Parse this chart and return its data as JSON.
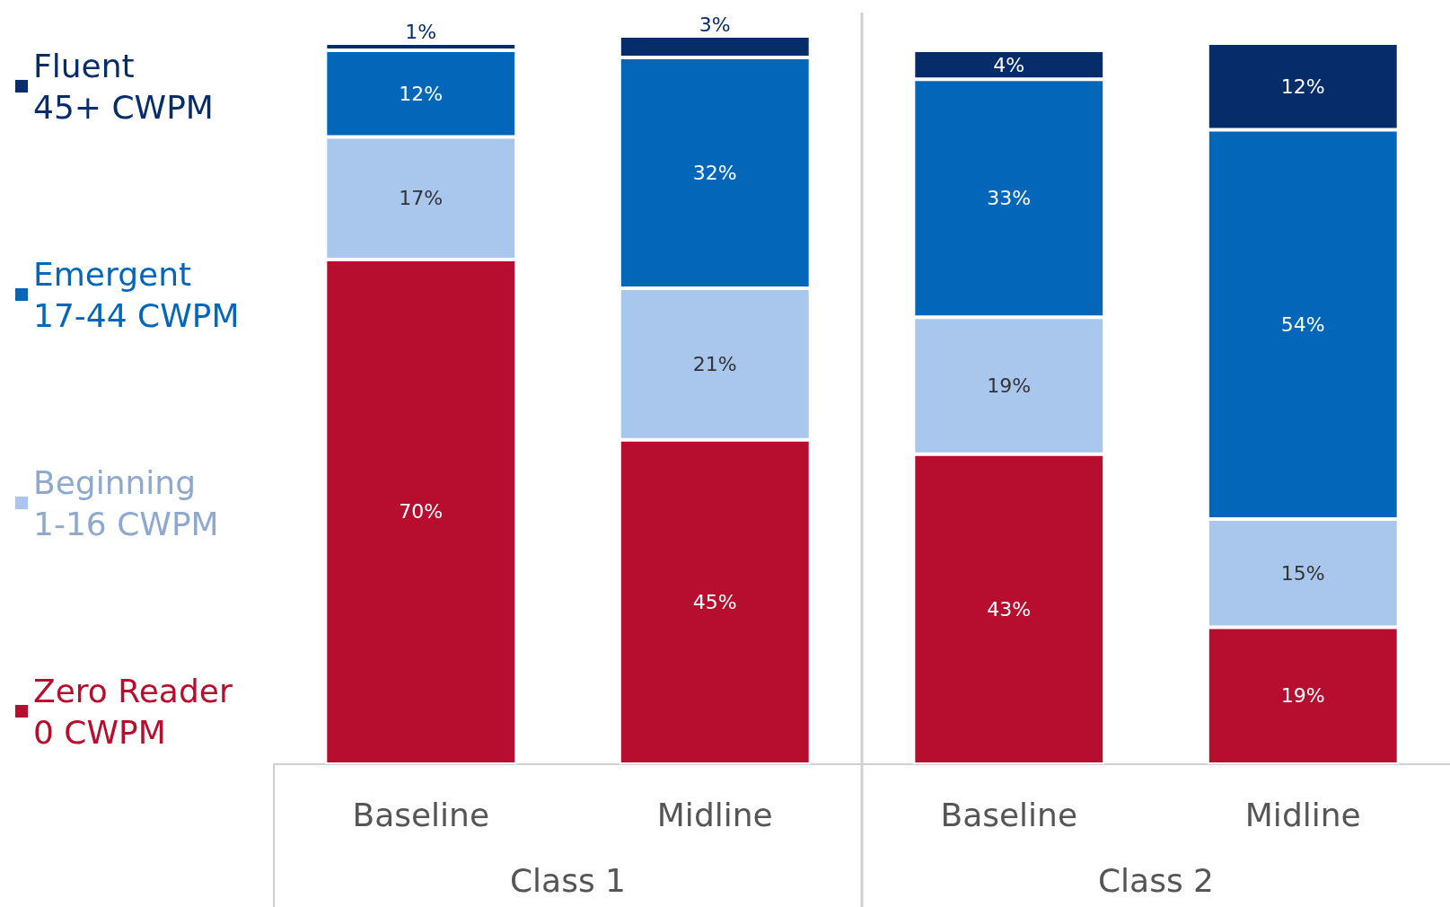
{
  "chart_data": {
    "type": "bar",
    "stacked": true,
    "legend": "left",
    "categories": [
      "Baseline",
      "Midline",
      "Baseline",
      "Midline"
    ],
    "annotations": [
      "Class 1",
      "Class 2"
    ],
    "series": [
      {
        "name": "Zero Reader\n0 CWPM",
        "color": "#b70e2f",
        "values": [
          70,
          45,
          43,
          19
        ],
        "value_labels": [
          "70%",
          "45%",
          "43%",
          "19%"
        ]
      },
      {
        "name": "Beginning\n1-16 CWPM",
        "color": "#a9c7ed",
        "values": [
          17,
          21,
          19,
          15
        ],
        "value_labels": [
          "17%",
          "21%",
          "19%",
          "15%"
        ]
      },
      {
        "name": "Emergent\n17-44 CWPM",
        "color": "#0366b9",
        "values": [
          12,
          32,
          33,
          54
        ],
        "value_labels": [
          "12%",
          "32%",
          "33%",
          "54%"
        ]
      },
      {
        "name": "Fluent\n45+ CWPM",
        "color": "#062c69",
        "values": [
          1,
          3,
          4,
          12
        ],
        "value_labels": [
          "1%",
          "3%",
          "4%",
          "12%"
        ]
      }
    ]
  }
}
